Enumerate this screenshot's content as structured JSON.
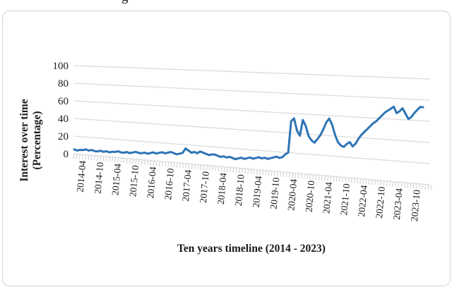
{
  "page": {
    "caption_fragment": "g"
  },
  "chart_data": {
    "type": "line",
    "title": "",
    "xlabel": "Ten years timeline (2014 - 2023)",
    "ylabel": "Interest over time (Percentage)",
    "ylabel_line1": "Interest over time",
    "ylabel_line2": "(Percentage)",
    "ylim": [
      0,
      100
    ],
    "yticks": [
      0,
      20,
      40,
      60,
      80,
      100
    ],
    "x_tick_labels": [
      "2014-04",
      "2014-10",
      "2015-04",
      "2015-10",
      "2016-04",
      "2016-10",
      "2017-04",
      "2017-10",
      "2018-04",
      "2018-10",
      "2019-04",
      "2019-10",
      "2020-04",
      "2020-10",
      "2021-04",
      "2021-10",
      "2022-04",
      "2022-10",
      "2023-04",
      "2023-10"
    ],
    "x_monthly_start": "2014-01",
    "x_monthly_end": "2023-12",
    "grid": true,
    "legend": false,
    "line_color": "#2e74b5",
    "gridline_color": "#dcdcdc",
    "tick_color": "#c9ced6",
    "frame_color": "#d9d9d9",
    "series": [
      {
        "name": "Interest over time (%)",
        "values": [
          5,
          4,
          5,
          5,
          6,
          5,
          6,
          5,
          5,
          6,
          5,
          6,
          5,
          6,
          6,
          7,
          6,
          6,
          7,
          6,
          7,
          8,
          7,
          7,
          8,
          7,
          8,
          9,
          8,
          9,
          10,
          9,
          10,
          11,
          10,
          9,
          10,
          11,
          16,
          14,
          12,
          13,
          12,
          14,
          13,
          12,
          11,
          12,
          12,
          11,
          10,
          11,
          10,
          11,
          10,
          9,
          10,
          11,
          10,
          11,
          12,
          11,
          12,
          13,
          12,
          13,
          12,
          13,
          14,
          15,
          14,
          15,
          18,
          20,
          52,
          55,
          43,
          38,
          54,
          48,
          38,
          34,
          32,
          36,
          40,
          46,
          53,
          57,
          51,
          41,
          34,
          31,
          30,
          33,
          35,
          31,
          34,
          39,
          43,
          46,
          49,
          52,
          55,
          57,
          60,
          63,
          66,
          68,
          70,
          72,
          66,
          68,
          71,
          66,
          61,
          63,
          67,
          70,
          73,
          73
        ]
      }
    ]
  }
}
